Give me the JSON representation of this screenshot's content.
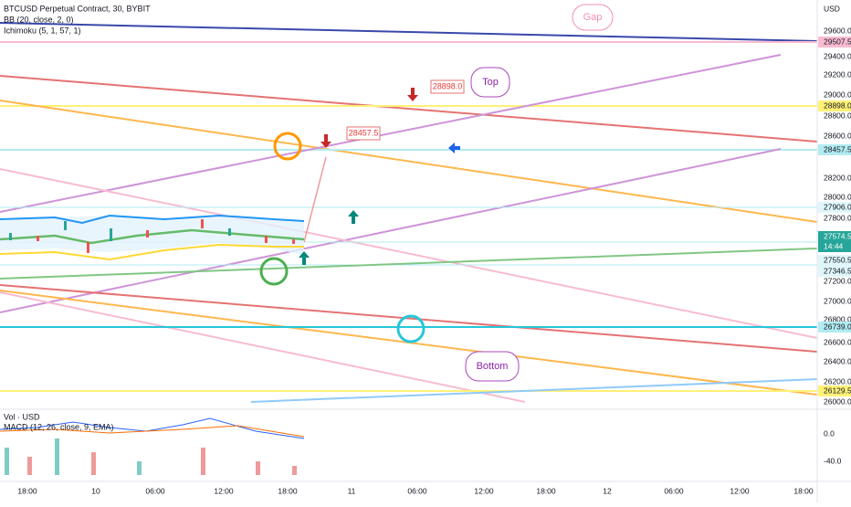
{
  "header": {
    "symbol": "BTCUSD Perpetual Contract, 30, BYBIT",
    "bb": "BB (20, close, 2, 0)",
    "ichimoku": "Ichimoku (5, 1, 57, 1)",
    "currency": "USD"
  },
  "lower_pane": {
    "volume": "Vol · USD",
    "macd": "MACD (12, 26, close, 9, EMA)",
    "scale": [
      "0.0",
      "-40.0"
    ]
  },
  "price_axis": [
    "29600.0",
    "29400.0",
    "29200.0",
    "29000.0",
    "28800.0",
    "28600.0",
    "28200.0",
    "28000.0",
    "27800.0",
    "27200.0",
    "27000.0",
    "26800.0",
    "26600.0",
    "26400.0",
    "26200.0",
    "26000.0"
  ],
  "price_markers": [
    "29507.5",
    "28898.0",
    "28457.5",
    "27906.0",
    "27574.5",
    "14:44",
    "27550.5",
    "27346.5",
    "26739.0",
    "26129.5"
  ],
  "time_axis": [
    "18:00",
    "10",
    "06:00",
    "12:00",
    "18:00",
    "11",
    "06:00",
    "12:00",
    "18:00",
    "12",
    "06:00",
    "12:00",
    "18:00"
  ],
  "annotations": {
    "gap": "Gap",
    "top": "Top",
    "bottom": "Bottom",
    "label_high": "28898.0",
    "label_mid": "28457.5"
  }
}
